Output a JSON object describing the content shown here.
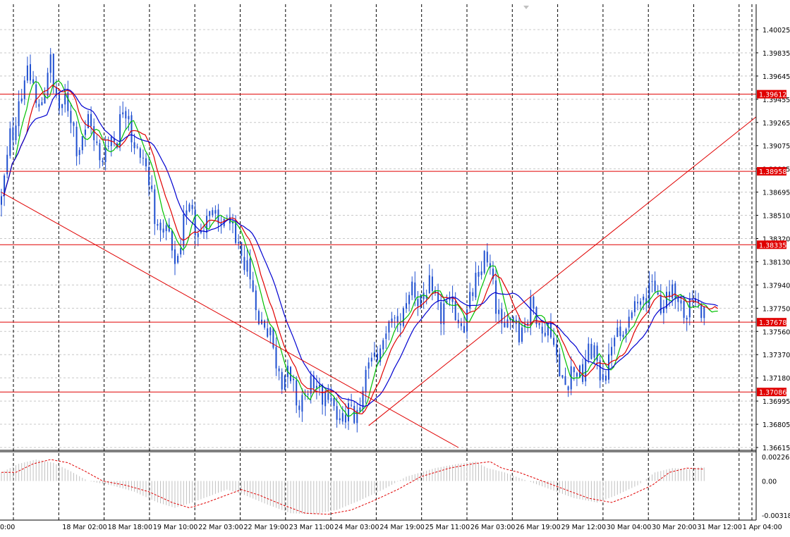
{
  "chart_data": {
    "type": "candlestick",
    "colors": {
      "candle": "#1f4fd0",
      "grid": "#c8c8c8",
      "separator": "#000000",
      "level_line": "#e00000",
      "level_label_bg": "#e00000",
      "level_label_text": "#ffffff",
      "ma_fast": "#00c000",
      "ma_mid": "#e00000",
      "ma_slow": "#0000d0",
      "trend_line": "#e00000",
      "histogram": "#c0c0c0",
      "signal": "#e00000"
    },
    "price_axis": {
      "range": [
        1.36615,
        1.4016
      ],
      "ticks": [
        "1.40025",
        "1.39835",
        "1.39645",
        "1.39455",
        "1.39265",
        "1.39075",
        "1.38885",
        "1.38695",
        "1.38510",
        "1.38320",
        "1.38130",
        "1.37940",
        "1.37750",
        "1.37560",
        "1.37370",
        "1.37180",
        "1.36995",
        "1.36805",
        "1.36615"
      ]
    },
    "levels": [
      {
        "label": "1.39612",
        "value": 1.39612
      },
      {
        "label": "1.38958",
        "value": 1.38958
      },
      {
        "label": "1.38335",
        "value": 1.38335
      },
      {
        "label": "1.37678",
        "value": 1.37678
      },
      {
        "label": "1.37086",
        "value": 1.37086
      }
    ],
    "time_axis": {
      "labels": [
        "0:00",
        "18 Mar 02:00",
        "18 Mar 18:00",
        "19 Mar 10:00",
        "22 Mar 03:00",
        "22 Mar 19:00",
        "23 Mar 11:00",
        "24 Mar 03:00",
        "24 Mar 19:00",
        "25 Mar 11:00",
        "26 Mar 03:00",
        "26 Mar 19:00",
        "29 Mar 12:00",
        "30 Mar 04:00",
        "30 Mar 20:00",
        "31 Mar 12:00",
        "1 Apr 04:00"
      ],
      "bars_between_labels": 16
    },
    "candles": {
      "count": 248,
      "anchors": [
        [
          0,
          1.3868
        ],
        [
          3,
          1.392
        ],
        [
          6,
          1.396
        ],
        [
          10,
          1.3975
        ],
        [
          14,
          1.395
        ],
        [
          17,
          1.3985
        ],
        [
          20,
          1.3955
        ],
        [
          23,
          1.3945
        ],
        [
          27,
          1.392
        ],
        [
          31,
          1.3935
        ],
        [
          35,
          1.3905
        ],
        [
          39,
          1.3925
        ],
        [
          42,
          1.395
        ],
        [
          45,
          1.3925
        ],
        [
          48,
          1.3915
        ],
        [
          51,
          1.388
        ],
        [
          54,
          1.3855
        ],
        [
          57,
          1.384
        ],
        [
          60,
          1.382
        ],
        [
          63,
          1.3855
        ],
        [
          66,
          1.386
        ],
        [
          70,
          1.3845
        ],
        [
          74,
          1.386
        ],
        [
          78,
          1.385
        ],
        [
          82,
          1.3835
        ],
        [
          86,
          1.38
        ],
        [
          90,
          1.377
        ],
        [
          94,
          1.3745
        ],
        [
          98,
          1.372
        ],
        [
          102,
          1.3705
        ],
        [
          106,
          1.3705
        ],
        [
          110,
          1.3715
        ],
        [
          114,
          1.3695
        ],
        [
          117,
          1.369
        ],
        [
          120,
          1.3685
        ],
        [
          123,
          1.3695
        ],
        [
          126,
          1.3725
        ],
        [
          130,
          1.3745
        ],
        [
          134,
          1.376
        ],
        [
          138,
          1.3775
        ],
        [
          142,
          1.379
        ],
        [
          146,
          1.3795
        ],
        [
          150,
          1.3785
        ],
        [
          154,
          1.378
        ],
        [
          158,
          1.3775
        ],
        [
          161,
          1.377
        ],
        [
          164,
          1.38
        ],
        [
          167,
          1.383
        ],
        [
          170,
          1.379
        ],
        [
          173,
          1.377
        ],
        [
          177,
          1.3765
        ],
        [
          181,
          1.377
        ],
        [
          185,
          1.3775
        ],
        [
          189,
          1.376
        ],
        [
          193,
          1.373
        ],
        [
          196,
          1.3715
        ],
        [
          199,
          1.3725
        ],
        [
          203,
          1.374
        ],
        [
          207,
          1.373
        ],
        [
          210,
          1.373
        ],
        [
          213,
          1.376
        ],
        [
          216,
          1.3765
        ],
        [
          219,
          1.378
        ],
        [
          222,
          1.38
        ],
        [
          225,
          1.379
        ],
        [
          228,
          1.3785
        ],
        [
          232,
          1.379
        ],
        [
          236,
          1.378
        ],
        [
          240,
          1.3784
        ],
        [
          244,
          1.3779
        ],
        [
          247,
          1.3768
        ]
      ],
      "wave": [
        0.0013,
        0.0009
      ],
      "body_scale": 0.0012
    },
    "moving_averages": [
      {
        "role": "fast",
        "period": 5
      },
      {
        "role": "mid",
        "period": 9
      },
      {
        "role": "slow",
        "period": 16
      }
    ],
    "trend_lines": [
      {
        "from": [
          0,
          1.3878
        ],
        "to": [
          158,
          1.36615
        ]
      },
      {
        "from": [
          127,
          1.368
        ],
        "to": [
          261,
          1.3942
        ]
      }
    ],
    "oscillator": {
      "ticks": [
        "0.002265",
        "0.00",
        "-0.003182"
      ],
      "range": [
        -0.003182,
        0.002265
      ],
      "anchors": [
        [
          0,
          0.0008
        ],
        [
          6,
          0.0016
        ],
        [
          12,
          0.002
        ],
        [
          18,
          0.0017
        ],
        [
          24,
          0.0009
        ],
        [
          30,
          0.0
        ],
        [
          38,
          -0.0004
        ],
        [
          46,
          -0.001
        ],
        [
          54,
          -0.002
        ],
        [
          60,
          -0.0025
        ],
        [
          66,
          -0.002
        ],
        [
          72,
          -0.0014
        ],
        [
          78,
          -0.0008
        ],
        [
          84,
          -0.0013
        ],
        [
          92,
          -0.0022
        ],
        [
          100,
          -0.003
        ],
        [
          108,
          -0.0031
        ],
        [
          116,
          -0.0027
        ],
        [
          124,
          -0.0018
        ],
        [
          132,
          -0.0008
        ],
        [
          140,
          0.0004
        ],
        [
          150,
          0.0012
        ],
        [
          158,
          0.0016
        ],
        [
          164,
          0.0018
        ],
        [
          168,
          0.0012
        ],
        [
          174,
          0.0008
        ],
        [
          180,
          0.0002
        ],
        [
          186,
          -0.0004
        ],
        [
          192,
          -0.001
        ],
        [
          198,
          -0.0016
        ],
        [
          206,
          -0.002
        ],
        [
          212,
          -0.0014
        ],
        [
          220,
          -0.0004
        ],
        [
          226,
          0.0008
        ],
        [
          232,
          0.0012
        ],
        [
          238,
          0.0011
        ],
        [
          242,
          0.0013
        ],
        [
          247,
          0.0011
        ]
      ]
    }
  }
}
